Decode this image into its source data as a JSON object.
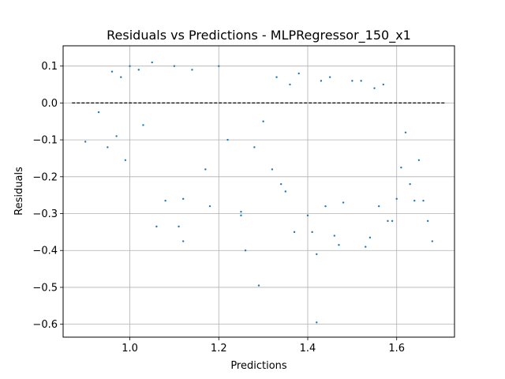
{
  "chart_data": {
    "type": "scatter",
    "title": "Residuals vs Predictions - MLPRegressor_150_x1",
    "xlabel": "Predictions",
    "ylabel": "Residuals",
    "xlim": [
      0.85,
      1.73
    ],
    "ylim": [
      -0.635,
      0.155
    ],
    "x_ticks": [
      1.0,
      1.2,
      1.4,
      1.6
    ],
    "x_tick_labels": [
      "1.0",
      "1.2",
      "1.4",
      "1.6"
    ],
    "y_ticks": [
      0.1,
      0.0,
      -0.1,
      -0.2,
      -0.3,
      -0.4,
      -0.5,
      -0.6
    ],
    "y_tick_labels": [
      "0.1",
      "0.0",
      "−0.1",
      "−0.2",
      "−0.3",
      "−0.4",
      "−0.5",
      "−0.6"
    ],
    "grid": true,
    "marker_color": "#1f77b4",
    "reference_line": {
      "y": 0.0,
      "x_range": [
        0.87,
        1.71
      ],
      "style": "dashed",
      "color": "#000000"
    },
    "series": [
      {
        "points": [
          [
            0.9,
            -0.105
          ],
          [
            0.93,
            -0.025
          ],
          [
            0.95,
            -0.12
          ],
          [
            0.97,
            -0.09
          ],
          [
            0.99,
            -0.155
          ],
          [
            0.98,
            0.07
          ],
          [
            0.96,
            0.085
          ],
          [
            1.0,
            0.1
          ],
          [
            1.02,
            0.09
          ],
          [
            1.03,
            -0.06
          ],
          [
            1.05,
            0.11
          ],
          [
            1.06,
            -0.335
          ],
          [
            1.08,
            -0.265
          ],
          [
            1.1,
            0.1
          ],
          [
            1.12,
            -0.26
          ],
          [
            1.12,
            -0.375
          ],
          [
            1.11,
            -0.335
          ],
          [
            1.14,
            0.09
          ],
          [
            1.17,
            -0.18
          ],
          [
            1.18,
            -0.28
          ],
          [
            1.2,
            0.1
          ],
          [
            1.22,
            -0.1
          ],
          [
            1.25,
            -0.295
          ],
          [
            1.25,
            -0.305
          ],
          [
            1.26,
            -0.4
          ],
          [
            1.28,
            -0.12
          ],
          [
            1.3,
            -0.05
          ],
          [
            1.32,
            -0.18
          ],
          [
            1.33,
            0.07
          ],
          [
            1.34,
            -0.22
          ],
          [
            1.35,
            -0.24
          ],
          [
            1.36,
            0.05
          ],
          [
            1.37,
            -0.35
          ],
          [
            1.38,
            0.08
          ],
          [
            1.4,
            -0.305
          ],
          [
            1.41,
            -0.35
          ],
          [
            1.42,
            -0.41
          ],
          [
            1.42,
            -0.595
          ],
          [
            1.43,
            0.06
          ],
          [
            1.44,
            -0.28
          ],
          [
            1.45,
            0.07
          ],
          [
            1.46,
            -0.36
          ],
          [
            1.47,
            -0.385
          ],
          [
            1.48,
            -0.27
          ],
          [
            1.5,
            0.06
          ],
          [
            1.52,
            0.06
          ],
          [
            1.53,
            -0.39
          ],
          [
            1.54,
            -0.365
          ],
          [
            1.55,
            0.04
          ],
          [
            1.56,
            -0.28
          ],
          [
            1.57,
            0.05
          ],
          [
            1.58,
            -0.32
          ],
          [
            1.59,
            -0.32
          ],
          [
            1.6,
            -0.26
          ],
          [
            1.61,
            -0.175
          ],
          [
            1.62,
            -0.08
          ],
          [
            1.63,
            -0.22
          ],
          [
            1.64,
            -0.265
          ],
          [
            1.65,
            -0.155
          ],
          [
            1.66,
            -0.265
          ],
          [
            1.67,
            -0.32
          ],
          [
            1.68,
            -0.375
          ],
          [
            1.29,
            -0.495
          ]
        ]
      }
    ]
  }
}
